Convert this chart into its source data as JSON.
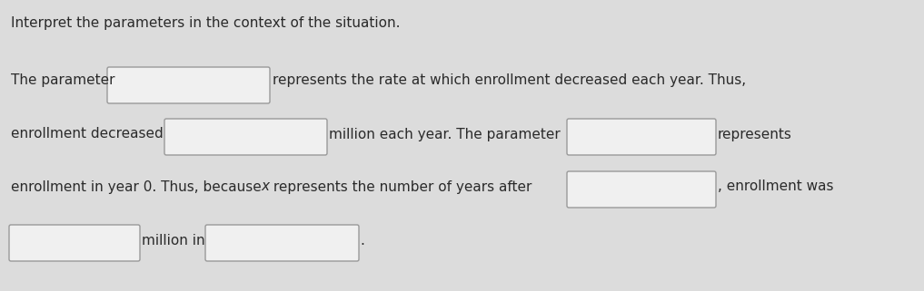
{
  "background_color": "#dcdcdc",
  "box_facecolor": "#f0f0f0",
  "box_edgecolor": "#999999",
  "text_color": "#2a2a2a",
  "fontsize": 11.0,
  "title": "Interpret the parameters in the context of the situation.",
  "elements": [
    {
      "type": "text",
      "content": "The parameter ",
      "xp": 12,
      "yp": 88
    },
    {
      "type": "box",
      "xp": 120,
      "yp": 76,
      "wp": 175,
      "hp": 36
    },
    {
      "type": "text",
      "content": "represents the rate at which enrollment decreased each year. Thus,",
      "xp": 300,
      "yp": 88
    },
    {
      "type": "text",
      "content": "enrollment decreased ",
      "xp": 12,
      "yp": 148
    },
    {
      "type": "box",
      "xp": 183,
      "yp": 133,
      "wp": 175,
      "hp": 36
    },
    {
      "type": "text",
      "content": "million each year. The parameter ",
      "xp": 362,
      "yp": 148
    },
    {
      "type": "box",
      "xp": 626,
      "yp": 133,
      "wp": 160,
      "hp": 36
    },
    {
      "type": "text",
      "content": "represents",
      "xp": 790,
      "yp": 148
    },
    {
      "type": "text",
      "content": "enrollment in year 0. Thus, because ",
      "xp": 12,
      "yp": 206
    },
    {
      "type": "text_italic",
      "content": "x",
      "xp": 287,
      "yp": 206
    },
    {
      "type": "text",
      "content": " represents the number of years after ",
      "xp": 296,
      "yp": 206
    },
    {
      "type": "box",
      "xp": 626,
      "yp": 191,
      "wp": 160,
      "hp": 36
    },
    {
      "type": "text",
      "content": ", enrollment was",
      "xp": 790,
      "yp": 206
    },
    {
      "type": "box",
      "xp": 12,
      "yp": 250,
      "wp": 140,
      "hp": 36
    },
    {
      "type": "text",
      "content": "million in ",
      "xp": 156,
      "yp": 266
    },
    {
      "type": "box",
      "xp": 228,
      "yp": 250,
      "wp": 165,
      "hp": 36
    },
    {
      "type": "text",
      "content": ".",
      "xp": 396,
      "yp": 266
    }
  ]
}
